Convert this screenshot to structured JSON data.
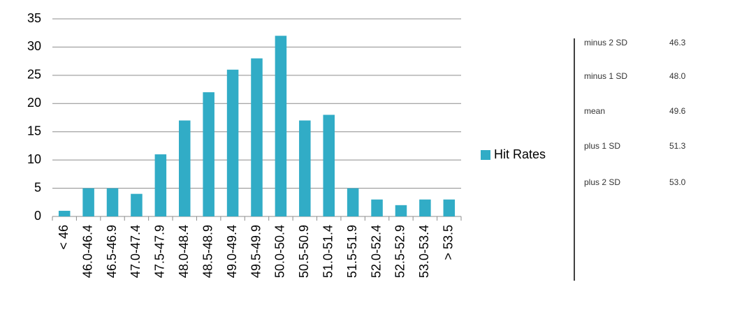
{
  "chart_data": {
    "type": "bar",
    "categories": [
      "< 46",
      "46.0-46.4",
      "46.5-46.9",
      "47.0-47.4",
      "47.5-47.9",
      "48.0-48.4",
      "48.5-48.9",
      "49.0-49.4",
      "49.5-49.9",
      "50.0-50.4",
      "50.5-50.9",
      "51.0-51.4",
      "51.5-51.9",
      "52.0-52.4",
      "52.5-52.9",
      "53.0-53.4",
      "> 53.5"
    ],
    "series": [
      {
        "name": "Hit Rates",
        "color": "#31acc6",
        "values": [
          1,
          5,
          5,
          4,
          11,
          17,
          22,
          26,
          28,
          32,
          17,
          18,
          5,
          3,
          2,
          3,
          3
        ]
      }
    ],
    "ylim": [
      0,
      35
    ],
    "yticks": [
      0,
      5,
      10,
      15,
      20,
      25,
      30,
      35
    ],
    "grid": true,
    "legend": "right"
  },
  "stats_table": {
    "rows": [
      [
        "minus 2 SD",
        "46.3"
      ],
      [
        "minus 1 SD",
        "48.0"
      ],
      [
        "mean",
        "49.6"
      ],
      [
        "plus 1 SD",
        "51.3"
      ],
      [
        "plus 2 SD",
        "53.0"
      ]
    ]
  }
}
